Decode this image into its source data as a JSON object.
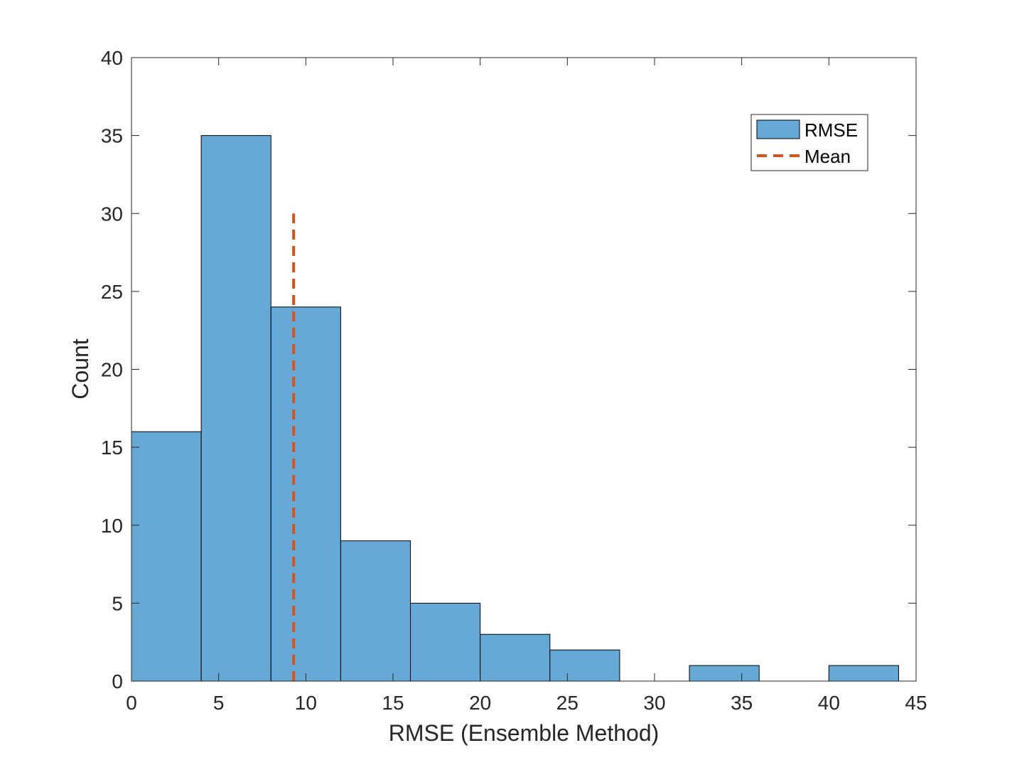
{
  "chart_data": {
    "type": "bar",
    "title": "",
    "xlabel": "RMSE (Ensemble Method)",
    "ylabel": "Count",
    "xlim": [
      0,
      45
    ],
    "ylim": [
      0,
      40
    ],
    "xticks": [
      0,
      5,
      10,
      15,
      20,
      25,
      30,
      35,
      40,
      45
    ],
    "yticks": [
      0,
      5,
      10,
      15,
      20,
      25,
      30,
      35,
      40
    ],
    "bin_edges": [
      0,
      4,
      8,
      12,
      16,
      20,
      24,
      28,
      32,
      36,
      40,
      44
    ],
    "values": [
      16,
      35,
      24,
      9,
      5,
      3,
      2,
      0,
      1,
      0,
      1
    ],
    "series": [
      {
        "name": "RMSE",
        "type": "histogram",
        "color": "#67a9d6"
      },
      {
        "name": "Mean",
        "type": "vline",
        "x": 9.3,
        "y_range": [
          0,
          30
        ],
        "color": "#d95319",
        "style": "dashed"
      }
    ],
    "legend_position": "top-right",
    "grid": false
  }
}
